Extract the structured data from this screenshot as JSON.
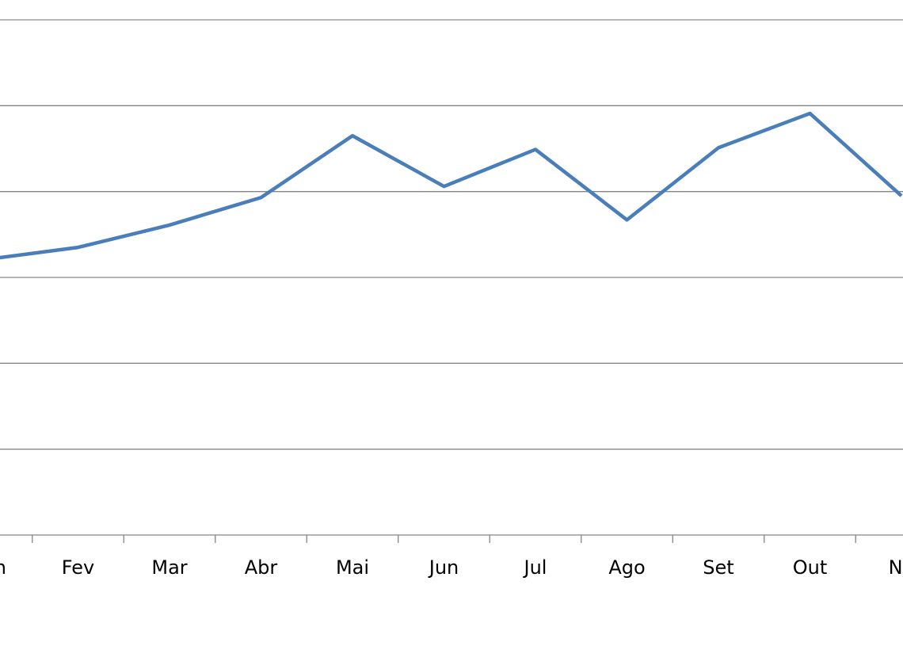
{
  "chart_data": {
    "type": "line",
    "categories": [
      "n",
      "Fev",
      "Mar",
      "Abr",
      "Mai",
      "Jun",
      "Jul",
      "Ago",
      "Set",
      "Out",
      "No"
    ],
    "series": [
      {
        "color": "#4a7ebb",
        "values": [
          3.21,
          3.35,
          3.61,
          3.93,
          4.65,
          4.06,
          4.49,
          3.67,
          4.51,
          4.91,
          3.95
        ]
      }
    ],
    "ylim": [
      0,
      6
    ],
    "yticks": [
      0,
      1,
      2,
      3,
      4,
      5,
      6
    ],
    "grid": true
  }
}
